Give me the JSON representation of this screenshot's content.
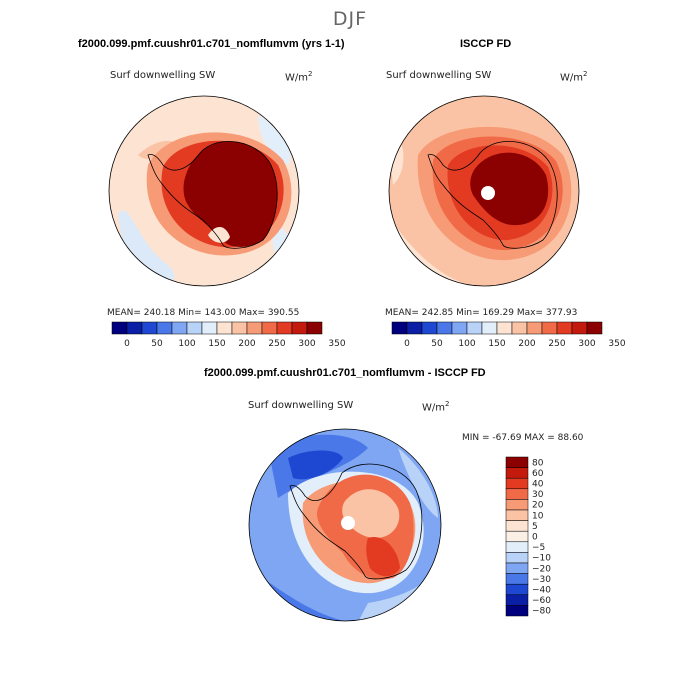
{
  "season": "DJF",
  "panels": [
    {
      "title": "f2000.099.pmf.cuushr01.c701_nomflumvm (yrs 1-1)",
      "variable": "Surf downwelling SW",
      "units": "W/m",
      "units_exp": "2",
      "stats": "MEAN= 240.18   Min= 143.00   Max= 390.55"
    },
    {
      "title": "ISCCP FD",
      "variable": "Surf downwelling SW",
      "units": "W/m",
      "units_exp": "2",
      "stats": "MEAN= 242.85   Min= 169.29   Max= 377.93"
    },
    {
      "title": "f2000.099.pmf.cuushr01.c701_nomflumvm - ISCCP FD",
      "variable": "Surf downwelling SW",
      "units": "W/m",
      "units_exp": "2",
      "stats": "MIN = -67.69 MAX =  88.60"
    }
  ],
  "chart_data": [
    {
      "type": "heatmap",
      "projection": "south-polar-stereographic",
      "title": "f2000.099.pmf.cuushr01.c701_nomflumvm (yrs 1-1)",
      "variable": "Surf downwelling SW",
      "units": "W/m2",
      "mean": 240.18,
      "min": 143.0,
      "max": 390.55,
      "colorbar_levels": [
        0,
        50,
        100,
        150,
        200,
        250,
        300,
        350
      ],
      "colorbar_ticks": [
        "0",
        "50",
        "100",
        "150",
        "200",
        "250",
        "300",
        "350"
      ],
      "colors": [
        "#00007f",
        "#0a1fa6",
        "#1f48d2",
        "#4a78e8",
        "#7ea6f2",
        "#b9d2f8",
        "#e3eefb",
        "#fde4d2",
        "#fbc3a5",
        "#f79b77",
        "#f06a48",
        "#e23b22",
        "#c41a0d",
        "#8b0000"
      ]
    },
    {
      "type": "heatmap",
      "projection": "south-polar-stereographic",
      "title": "ISCCP FD",
      "variable": "Surf downwelling SW",
      "units": "W/m2",
      "mean": 242.85,
      "min": 169.29,
      "max": 377.93,
      "colorbar_levels": [
        0,
        50,
        100,
        150,
        200,
        250,
        300,
        350
      ],
      "colorbar_ticks": [
        "0",
        "50",
        "100",
        "150",
        "200",
        "250",
        "300",
        "350"
      ],
      "colors": [
        "#00007f",
        "#0a1fa6",
        "#1f48d2",
        "#4a78e8",
        "#7ea6f2",
        "#b9d2f8",
        "#e3eefb",
        "#fde4d2",
        "#fbc3a5",
        "#f79b77",
        "#f06a48",
        "#e23b22",
        "#c41a0d",
        "#8b0000"
      ]
    },
    {
      "type": "heatmap",
      "projection": "south-polar-stereographic",
      "title": "f2000.099.pmf.cuushr01.c701_nomflumvm - ISCCP FD",
      "variable": "Surf downwelling SW",
      "units": "W/m2",
      "min": -67.69,
      "max": 88.6,
      "colorbar_levels": [
        80,
        60,
        40,
        30,
        20,
        10,
        5,
        0,
        -5,
        -10,
        -20,
        -30,
        -40,
        -60,
        -80
      ],
      "colorbar_ticks": [
        "80",
        "60",
        "40",
        "30",
        "20",
        "10",
        "5",
        "0",
        "−5",
        "−10",
        "−20",
        "−30",
        "−40",
        "−60",
        "−80"
      ],
      "colors": [
        "#8b0000",
        "#c41a0d",
        "#e23b22",
        "#f06a48",
        "#f79b77",
        "#fbc3a5",
        "#fde4d2",
        "#fbf0e6",
        "#e3eefb",
        "#b9d2f8",
        "#7ea6f2",
        "#4a78e8",
        "#1f48d2",
        "#0a1fa6",
        "#00007f"
      ]
    }
  ]
}
